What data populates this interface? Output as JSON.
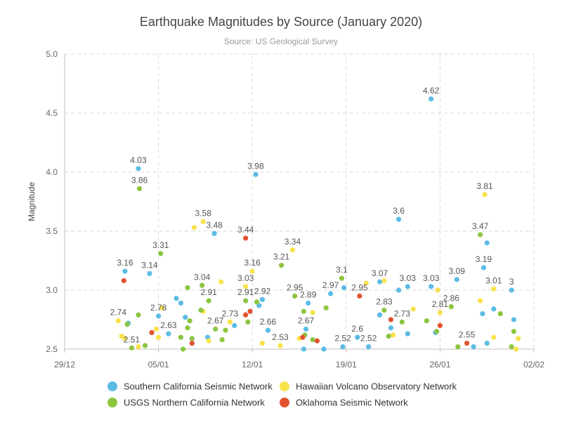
{
  "chart_data": {
    "type": "scatter",
    "title": "Earthquake Magnitudes by Source (January 2020)",
    "subtitle": "Source: US Geological Survey",
    "ylabel": "Magnitude",
    "xlabel": "",
    "xlim": [
      "2019-12-29",
      "2020-02-02"
    ],
    "ylim": [
      2.5,
      5.0
    ],
    "x_ticks": [
      {
        "date": "2019-12-29",
        "label": "29/12"
      },
      {
        "date": "2020-01-05",
        "label": "05/01"
      },
      {
        "date": "2020-01-12",
        "label": "12/01"
      },
      {
        "date": "2020-01-19",
        "label": "19/01"
      },
      {
        "date": "2020-01-26",
        "label": "26/01"
      },
      {
        "date": "2020-02-02",
        "label": "02/02"
      }
    ],
    "y_ticks": [
      {
        "value": 2.5,
        "label": "2.5"
      },
      {
        "value": 3.0,
        "label": "3.0"
      },
      {
        "value": 3.5,
        "label": "3.5"
      },
      {
        "value": 4.0,
        "label": "4.0"
      },
      {
        "value": 4.5,
        "label": "4.5"
      },
      {
        "value": 5.0,
        "label": "5.0"
      }
    ],
    "grid": true,
    "legend_position": "bottom",
    "series": [
      {
        "name": "Southern California Seismic Network",
        "color": "#5bbce4",
        "points": [
          {
            "x": "2020-01-02T12:00",
            "y": 3.16,
            "label": "3.16"
          },
          {
            "x": "2020-01-03T12:00",
            "y": 4.03,
            "label": "4.03"
          },
          {
            "x": "2020-01-04T08:00",
            "y": 3.14,
            "label": "3.14"
          },
          {
            "x": "2020-01-05T00:00",
            "y": 2.78,
            "label": "2.78"
          },
          {
            "x": "2020-01-05T18:00",
            "y": 2.63,
            "label": "2.63"
          },
          {
            "x": "2020-01-02T18:00",
            "y": 2.72
          },
          {
            "x": "2020-01-06T08:00",
            "y": 2.93
          },
          {
            "x": "2020-01-06T16:00",
            "y": 2.89
          },
          {
            "x": "2020-01-07T00:00",
            "y": 2.77
          },
          {
            "x": "2020-01-07T12:00",
            "y": 2.55
          },
          {
            "x": "2020-01-08T16:00",
            "y": 2.6
          },
          {
            "x": "2020-01-09T04:00",
            "y": 3.48,
            "label": "3.48"
          },
          {
            "x": "2020-01-10T16:00",
            "y": 2.7
          },
          {
            "x": "2020-01-12T06:00",
            "y": 3.98,
            "label": "3.98"
          },
          {
            "x": "2020-01-12T12:00",
            "y": 2.87
          },
          {
            "x": "2020-01-12T18:00",
            "y": 2.92,
            "label": "2.92"
          },
          {
            "x": "2020-01-13T04:00",
            "y": 2.66,
            "label": "2.66"
          },
          {
            "x": "2020-01-16T00:00",
            "y": 2.67,
            "label": "2.67"
          },
          {
            "x": "2020-01-16T04:00",
            "y": 2.89,
            "label": "2.89"
          },
          {
            "x": "2020-01-15T20:00",
            "y": 2.5
          },
          {
            "x": "2020-01-17T08:00",
            "y": 2.5
          },
          {
            "x": "2020-01-17T20:00",
            "y": 2.97,
            "label": "2.97"
          },
          {
            "x": "2020-01-18T20:00",
            "y": 3.02
          },
          {
            "x": "2020-01-18T18:00",
            "y": 2.52,
            "label": "2.52"
          },
          {
            "x": "2020-01-19T20:00",
            "y": 2.6,
            "label": "2.6"
          },
          {
            "x": "2020-01-20T16:00",
            "y": 2.52,
            "label": "2.52"
          },
          {
            "x": "2020-01-21T12:00",
            "y": 3.07,
            "label": "3.07"
          },
          {
            "x": "2020-01-21T12:00",
            "y": 2.79
          },
          {
            "x": "2020-01-22T08:00",
            "y": 2.68
          },
          {
            "x": "2020-01-22T22:00",
            "y": 3.6,
            "label": "3.6"
          },
          {
            "x": "2020-01-22T22:00",
            "y": 3.0
          },
          {
            "x": "2020-01-23T14:00",
            "y": 3.03,
            "label": "3.03"
          },
          {
            "x": "2020-01-23T14:00",
            "y": 2.63
          },
          {
            "x": "2020-01-25T08:00",
            "y": 4.62,
            "label": "4.62"
          },
          {
            "x": "2020-01-25T08:00",
            "y": 3.03,
            "label": "3.03"
          },
          {
            "x": "2020-01-25T16:00",
            "y": 2.64
          },
          {
            "x": "2020-01-27T06:00",
            "y": 3.09,
            "label": "3.09"
          },
          {
            "x": "2020-01-28T12:00",
            "y": 2.52
          },
          {
            "x": "2020-01-29T06:00",
            "y": 3.19,
            "label": "3.19"
          },
          {
            "x": "2020-01-29T12:00",
            "y": 3.4
          },
          {
            "x": "2020-01-29T04:00",
            "y": 2.8
          },
          {
            "x": "2020-01-29T12:00",
            "y": 2.55
          },
          {
            "x": "2020-01-30T00:00",
            "y": 2.84
          },
          {
            "x": "2020-01-31T08:00",
            "y": 3.0,
            "label": "3"
          },
          {
            "x": "2020-01-31T12:00",
            "y": 2.75
          }
        ]
      },
      {
        "name": "Hawaiian Volcano Observatory Network",
        "color": "#fae24c",
        "points": [
          {
            "x": "2020-01-02T00:00",
            "y": 2.74,
            "label": "2.74"
          },
          {
            "x": "2020-01-02T06:00",
            "y": 2.61
          },
          {
            "x": "2020-01-02T12:00",
            "y": 2.59
          },
          {
            "x": "2020-01-03T12:00",
            "y": 2.52
          },
          {
            "x": "2020-01-04T20:00",
            "y": 2.67
          },
          {
            "x": "2020-01-05T00:00",
            "y": 2.6
          },
          {
            "x": "2020-01-05T06:00",
            "y": 2.85
          },
          {
            "x": "2020-01-07T16:00",
            "y": 3.53
          },
          {
            "x": "2020-01-08T08:00",
            "y": 3.58,
            "label": "3.58"
          },
          {
            "x": "2020-01-08T08:00",
            "y": 2.82
          },
          {
            "x": "2020-01-08T18:00",
            "y": 2.57
          },
          {
            "x": "2020-01-09T16:00",
            "y": 3.07
          },
          {
            "x": "2020-01-10T08:00",
            "y": 2.73,
            "label": "2.73"
          },
          {
            "x": "2020-01-11T12:00",
            "y": 3.03,
            "label": "3.03"
          },
          {
            "x": "2020-01-12T00:00",
            "y": 3.16,
            "label": "3.16"
          },
          {
            "x": "2020-01-12T18:00",
            "y": 2.55
          },
          {
            "x": "2020-01-14T02:00",
            "y": 2.53,
            "label": "2.53"
          },
          {
            "x": "2020-01-15T00:00",
            "y": 3.34,
            "label": "3.34"
          },
          {
            "x": "2020-01-15T12:00",
            "y": 2.59
          },
          {
            "x": "2020-01-15T18:00",
            "y": 2.6
          },
          {
            "x": "2020-01-16T12:00",
            "y": 2.81
          },
          {
            "x": "2020-01-20T12:00",
            "y": 3.06
          },
          {
            "x": "2020-01-21T20:00",
            "y": 3.08
          },
          {
            "x": "2020-01-22T12:00",
            "y": 2.62
          },
          {
            "x": "2020-01-24T00:00",
            "y": 2.84
          },
          {
            "x": "2020-01-25T20:00",
            "y": 3.0
          },
          {
            "x": "2020-01-26T00:00",
            "y": 2.81,
            "label": "2.81"
          },
          {
            "x": "2020-01-29T00:00",
            "y": 2.91
          },
          {
            "x": "2020-01-29T08:00",
            "y": 3.81,
            "label": "3.81"
          },
          {
            "x": "2020-01-30T00:00",
            "y": 3.01,
            "label": "3.01"
          },
          {
            "x": "2020-01-30T00:00",
            "y": 2.6
          },
          {
            "x": "2020-01-31T20:00",
            "y": 2.59
          },
          {
            "x": "2020-01-31T16:00",
            "y": 2.5
          }
        ]
      },
      {
        "name": "USGS Northern California Network",
        "color": "#8cc540",
        "points": [
          {
            "x": "2020-01-02T16:00",
            "y": 2.71
          },
          {
            "x": "2020-01-03T00:00",
            "y": 2.51,
            "label": "2.51"
          },
          {
            "x": "2020-01-03T12:00",
            "y": 2.79
          },
          {
            "x": "2020-01-03T14:00",
            "y": 3.86,
            "label": "3.86"
          },
          {
            "x": "2020-01-04T00:00",
            "y": 2.53
          },
          {
            "x": "2020-01-05T04:00",
            "y": 3.31,
            "label": "3.31"
          },
          {
            "x": "2020-01-06T16:00",
            "y": 2.6
          },
          {
            "x": "2020-01-06T20:00",
            "y": 2.5
          },
          {
            "x": "2020-01-07T04:00",
            "y": 3.02
          },
          {
            "x": "2020-01-07T08:00",
            "y": 2.74
          },
          {
            "x": "2020-01-07T04:00",
            "y": 2.68
          },
          {
            "x": "2020-01-07T12:00",
            "y": 2.59
          },
          {
            "x": "2020-01-08T06:00",
            "y": 3.04,
            "label": "3.04"
          },
          {
            "x": "2020-01-08T04:00",
            "y": 2.83
          },
          {
            "x": "2020-01-08T18:00",
            "y": 2.91,
            "label": "2.91"
          },
          {
            "x": "2020-01-09T06:00",
            "y": 2.67,
            "label": "2.67"
          },
          {
            "x": "2020-01-09T18:00",
            "y": 2.58
          },
          {
            "x": "2020-01-10T00:00",
            "y": 2.66
          },
          {
            "x": "2020-01-11T16:00",
            "y": 2.73
          },
          {
            "x": "2020-01-11T12:00",
            "y": 2.91,
            "label": "2.91"
          },
          {
            "x": "2020-01-12T08:00",
            "y": 2.9
          },
          {
            "x": "2020-01-14T04:00",
            "y": 3.21,
            "label": "3.21"
          },
          {
            "x": "2020-01-15T04:00",
            "y": 2.95,
            "label": "2.95"
          },
          {
            "x": "2020-01-15T20:00",
            "y": 2.82
          },
          {
            "x": "2020-01-15T22:00",
            "y": 2.62
          },
          {
            "x": "2020-01-16T12:00",
            "y": 2.58
          },
          {
            "x": "2020-01-17T12:00",
            "y": 2.85
          },
          {
            "x": "2020-01-18T16:00",
            "y": 3.1,
            "label": "3.1"
          },
          {
            "x": "2020-01-21T20:00",
            "y": 2.83,
            "label": "2.83"
          },
          {
            "x": "2020-01-22T04:00",
            "y": 2.61
          },
          {
            "x": "2020-01-23T04:00",
            "y": 2.73,
            "label": "2.73"
          },
          {
            "x": "2020-01-25T00:00",
            "y": 2.74
          },
          {
            "x": "2020-01-25T18:00",
            "y": 2.65
          },
          {
            "x": "2020-01-26T20:00",
            "y": 2.86,
            "label": "2.86"
          },
          {
            "x": "2020-01-27T08:00",
            "y": 2.52
          },
          {
            "x": "2020-01-29T00:00",
            "y": 3.47,
            "label": "3.47"
          },
          {
            "x": "2020-01-30T12:00",
            "y": 2.8
          },
          {
            "x": "2020-01-31T08:00",
            "y": 2.52
          },
          {
            "x": "2020-01-31T12:00",
            "y": 2.65
          }
        ]
      },
      {
        "name": "Oklahoma Seismic Network",
        "color": "#e2522f",
        "points": [
          {
            "x": "2020-01-02T10:00",
            "y": 3.08
          },
          {
            "x": "2020-01-04T12:00",
            "y": 2.64
          },
          {
            "x": "2020-01-07T12:00",
            "y": 2.55
          },
          {
            "x": "2020-01-11T12:00",
            "y": 3.44,
            "label": "3.44"
          },
          {
            "x": "2020-01-11T12:00",
            "y": 2.79
          },
          {
            "x": "2020-01-11T20:00",
            "y": 2.82
          },
          {
            "x": "2020-01-15T18:00",
            "y": 2.6
          },
          {
            "x": "2020-01-16T20:00",
            "y": 2.57
          },
          {
            "x": "2020-01-20T00:00",
            "y": 2.95,
            "label": "2.95"
          },
          {
            "x": "2020-01-22T08:00",
            "y": 2.75
          },
          {
            "x": "2020-01-26T00:00",
            "y": 2.7
          },
          {
            "x": "2020-01-28T00:00",
            "y": 2.55,
            "label": "2.55"
          }
        ]
      }
    ]
  }
}
